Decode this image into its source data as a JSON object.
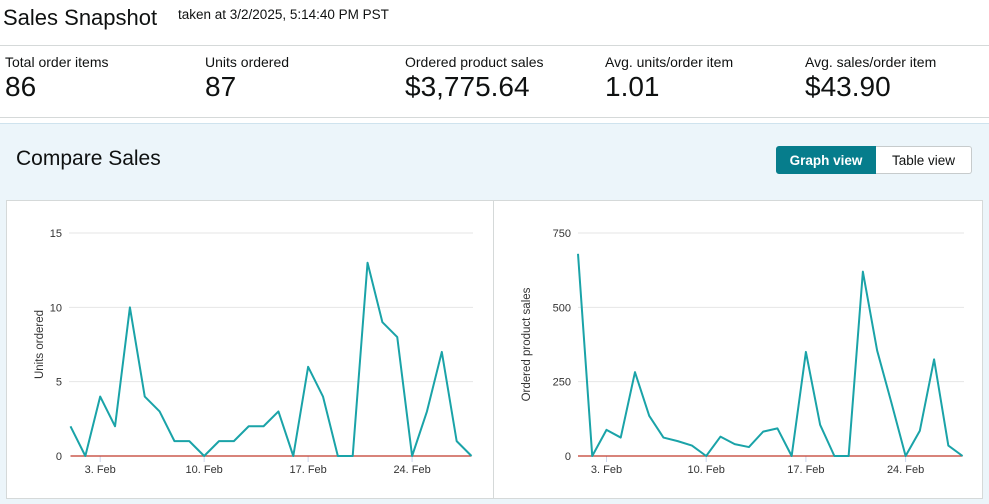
{
  "header": {
    "title": "Sales Snapshot",
    "timestamp": "taken at 3/2/2025, 5:14:40 PM PST"
  },
  "metrics": [
    {
      "label": "Total order items",
      "value": "86"
    },
    {
      "label": "Units ordered",
      "value": "87"
    },
    {
      "label": "Ordered product sales",
      "value": "$3,775.64"
    },
    {
      "label": "Avg. units/order item",
      "value": "1.01"
    },
    {
      "label": "Avg. sales/order item",
      "value": "$43.90"
    }
  ],
  "compare": {
    "title": "Compare Sales",
    "view_toggle": {
      "graph_label": "Graph view",
      "table_label": "Table view",
      "selected": "Graph view"
    }
  },
  "colors": {
    "series_line": "#1aa3a8",
    "baseline": "#c0392b",
    "accent_button": "#067d8c",
    "panel_bg": "#ecf5fa"
  },
  "chart_data": [
    {
      "type": "line",
      "ylabel": "Units ordered",
      "xlabel": "",
      "x_days": [
        1,
        2,
        3,
        4,
        5,
        6,
        7,
        8,
        9,
        10,
        11,
        12,
        13,
        14,
        15,
        16,
        17,
        18,
        19,
        20,
        21,
        22,
        23,
        24,
        25,
        26,
        27,
        28
      ],
      "x_ticks": [
        {
          "day": 3,
          "label": "3. Feb"
        },
        {
          "day": 10,
          "label": "10. Feb"
        },
        {
          "day": 17,
          "label": "17. Feb"
        },
        {
          "day": 24,
          "label": "24. Feb"
        }
      ],
      "xlim": [
        0.9,
        28.1
      ],
      "ylim": [
        0,
        15
      ],
      "y_ticks": [
        0,
        5,
        10,
        15
      ],
      "series": [
        {
          "values": [
            2,
            0,
            4,
            2,
            10,
            4,
            3,
            1,
            1,
            0,
            1,
            1,
            2,
            2,
            3,
            0,
            6,
            4,
            0,
            0,
            13,
            9,
            8,
            0,
            3,
            7,
            1,
            0
          ]
        },
        {
          "values": [
            0,
            0,
            0,
            0,
            0,
            0,
            0,
            0,
            0,
            0,
            0,
            0,
            0,
            0,
            0,
            0,
            0,
            0,
            0,
            0,
            0,
            0,
            0,
            0,
            0,
            0,
            0,
            0
          ]
        }
      ]
    },
    {
      "type": "line",
      "ylabel": "Ordered product sales",
      "xlabel": "",
      "x_days": [
        1,
        2,
        3,
        4,
        5,
        6,
        7,
        8,
        9,
        10,
        11,
        12,
        13,
        14,
        15,
        16,
        17,
        18,
        19,
        20,
        21,
        22,
        23,
        24,
        25,
        26,
        27,
        28
      ],
      "x_ticks": [
        {
          "day": 3,
          "label": "3. Feb"
        },
        {
          "day": 10,
          "label": "10. Feb"
        },
        {
          "day": 17,
          "label": "17. Feb"
        },
        {
          "day": 24,
          "label": "24. Feb"
        }
      ],
      "xlim": [
        1,
        28.1
      ],
      "ylim": [
        0,
        750
      ],
      "y_ticks": [
        0,
        250,
        500,
        750
      ],
      "series": [
        {
          "values": [
            680,
            0,
            88,
            62,
            282,
            135,
            62,
            50,
            35,
            0,
            65,
            40,
            30,
            82,
            93,
            0,
            350,
            105,
            0,
            0,
            620,
            355,
            180,
            0,
            85,
            325,
            35,
            0
          ]
        },
        {
          "values": [
            0,
            0,
            0,
            0,
            0,
            0,
            0,
            0,
            0,
            0,
            0,
            0,
            0,
            0,
            0,
            0,
            0,
            0,
            0,
            0,
            0,
            0,
            0,
            0,
            0,
            0,
            0,
            0
          ]
        }
      ]
    }
  ]
}
